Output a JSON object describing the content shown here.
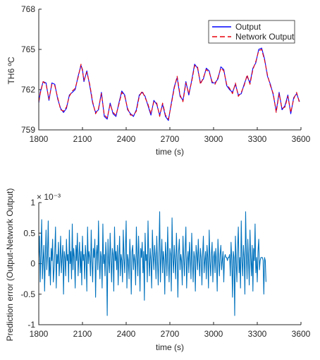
{
  "chart_data": [
    {
      "type": "line",
      "xlabel": "time (s)",
      "ylabel": "TH6 ºC",
      "xlim": [
        1800,
        3600
      ],
      "ylim": [
        759,
        768
      ],
      "xticks": [
        1800,
        2100,
        2400,
        2700,
        3000,
        3300,
        3600
      ],
      "yticks": [
        759,
        762,
        765,
        768
      ],
      "grid": false,
      "legend_location": "top-right",
      "x": [
        1800,
        1810,
        1830,
        1850,
        1870,
        1890,
        1910,
        1930,
        1950,
        1970,
        1990,
        2010,
        2030,
        2050,
        2070,
        2090,
        2100,
        2110,
        2130,
        2150,
        2170,
        2190,
        2210,
        2230,
        2250,
        2270,
        2290,
        2310,
        2330,
        2350,
        2370,
        2390,
        2410,
        2430,
        2450,
        2470,
        2490,
        2510,
        2530,
        2550,
        2570,
        2590,
        2610,
        2630,
        2650,
        2670,
        2690,
        2710,
        2730,
        2750,
        2770,
        2790,
        2810,
        2830,
        2850,
        2870,
        2890,
        2910,
        2930,
        2950,
        2970,
        2990,
        3010,
        3030,
        3050,
        3070,
        3090,
        3110,
        3130,
        3150,
        3170,
        3190,
        3210,
        3230,
        3250,
        3270,
        3290,
        3310,
        3330,
        3350,
        3370,
        3390,
        3410,
        3430,
        3450,
        3470,
        3490,
        3510,
        3530,
        3550,
        3570,
        3590
      ],
      "series": [
        {
          "name": "Output",
          "color": "#0000ff",
          "dash": "solid",
          "values": [
            761.0,
            761.8,
            762.6,
            762.5,
            761.2,
            762.5,
            762.4,
            761.3,
            760.6,
            760.3,
            760.6,
            761.6,
            761.8,
            762.0,
            763.0,
            763.8,
            763.5,
            762.6,
            763.4,
            762.3,
            761.0,
            760.3,
            760.5,
            761.8,
            760.0,
            759.8,
            761.0,
            760.2,
            760.0,
            761.0,
            761.9,
            761.6,
            760.5,
            760.2,
            760.0,
            760.5,
            761.6,
            761.8,
            761.5,
            760.8,
            760.1,
            761.2,
            760.9,
            760.1,
            760.9,
            760.0,
            759.7,
            761.0,
            762.2,
            762.9,
            761.5,
            761.2,
            762.6,
            761.6,
            762.7,
            763.9,
            763.6,
            762.5,
            762.8,
            763.6,
            763.4,
            762.5,
            762.5,
            762.8,
            763.7,
            763.5,
            762.3,
            762.0,
            761.8,
            762.4,
            761.6,
            761.7,
            762.4,
            763.0,
            762.5,
            763.6,
            764.0,
            765.0,
            765.1,
            764.3,
            763.0,
            762.4,
            761.6,
            760.4,
            761.8,
            760.5,
            760.8,
            761.6,
            760.2,
            761.4,
            761.7,
            761.1
          ]
        },
        {
          "name": "Network Output",
          "color": "#e8000b",
          "dash": "dashed",
          "values": [
            761.1,
            761.7,
            762.6,
            762.4,
            761.3,
            762.4,
            762.3,
            761.4,
            760.5,
            760.4,
            760.7,
            761.5,
            761.9,
            762.1,
            762.9,
            763.9,
            763.4,
            762.7,
            763.3,
            762.4,
            761.1,
            760.2,
            760.6,
            761.7,
            760.1,
            759.9,
            760.9,
            760.3,
            760.1,
            760.9,
            761.8,
            761.5,
            760.6,
            760.1,
            760.1,
            760.4,
            761.5,
            761.9,
            761.4,
            760.9,
            760.2,
            761.1,
            761.0,
            760.0,
            761.0,
            760.1,
            759.8,
            760.9,
            762.1,
            763.0,
            761.6,
            761.1,
            762.5,
            761.7,
            762.6,
            763.8,
            763.7,
            762.4,
            762.9,
            763.5,
            763.3,
            762.6,
            762.4,
            762.9,
            763.6,
            763.4,
            762.4,
            762.1,
            761.7,
            762.5,
            761.5,
            761.8,
            762.3,
            763.1,
            762.4,
            763.5,
            764.1,
            764.9,
            765.0,
            764.2,
            763.1,
            762.3,
            761.7,
            760.3,
            761.7,
            760.6,
            760.7,
            761.5,
            760.3,
            761.3,
            761.8,
            761.0
          ]
        }
      ]
    },
    {
      "type": "line",
      "xlabel": "time (s)",
      "ylabel": "Prediction error (Output-Network Output)",
      "y_exponent_label": "× 10⁻³",
      "xlim": [
        1800,
        3600
      ],
      "ylim": [
        -1,
        1
      ],
      "xticks": [
        1800,
        2100,
        2400,
        2700,
        3000,
        3300,
        3600
      ],
      "yticks": [
        -1,
        -0.5,
        0,
        0.5,
        1
      ],
      "grid": false,
      "series": [
        {
          "color": "#0072bd",
          "dash": "solid",
          "x_start": 1800,
          "x_step": 5,
          "values": [
            0.1,
            0.45,
            -0.3,
            0.2,
            0.72,
            -0.25,
            0.05,
            0.3,
            -0.45,
            0.1,
            0.55,
            -0.1,
            0.15,
            0.7,
            -0.2,
            0.1,
            -0.35,
            0.25,
            0.05,
            0.4,
            -0.3,
            -0.1,
            0.2,
            0.6,
            -0.4,
            0.15,
            0.0,
            0.35,
            -0.2,
            0.05,
            0.45,
            -0.15,
            0.1,
            0.3,
            -0.5,
            0.2,
            0.1,
            -0.2,
            0.4,
            0.05,
            0.15,
            -0.3,
            0.55,
            0.0,
            0.2,
            -0.25,
            0.65,
            -0.1,
            0.25,
            0.1,
            -0.4,
            0.3,
            0.05,
            0.5,
            -0.2,
            0.1,
            0.35,
            -0.15,
            0.2,
            -0.35,
            0.45,
            0.05,
            0.15,
            -0.25,
            0.3,
            0.1,
            -0.45,
            0.6,
            0.0,
            0.2,
            0.1,
            -0.2,
            0.55,
            0.05,
            -0.3,
            0.25,
            0.1,
            0.4,
            -0.55,
            0.15,
            0.3,
            -0.1,
            0.7,
            0.05,
            -0.25,
            0.2,
            0.1,
            -0.4,
            0.65,
            0.0,
            0.15,
            -0.2,
            0.35,
            0.1,
            -0.85,
            0.4,
            0.05,
            -0.15,
            0.5,
            0.1,
            -0.3,
            0.25,
            0.15,
            -0.45,
            0.6,
            0.05,
            0.2,
            -0.1,
            0.3,
            -0.35,
            0.1,
            0.45,
            -0.2,
            0.15,
            0.05,
            -0.3,
            0.55,
            0.1,
            -0.15,
            0.25,
            0.7,
            -0.4,
            0.15,
            0.05,
            -0.25,
            0.4,
            0.1,
            -0.5,
            0.2,
            0.3,
            -0.1,
            0.15,
            0.05,
            -0.35,
            0.6,
            0.1,
            -0.2,
            0.45,
            0.05,
            -0.45,
            0.25,
            0.1,
            0.35,
            -0.15,
            0.2,
            -0.6,
            0.5,
            0.05,
            0.15,
            -0.3,
            0.7,
            0.1,
            -0.2,
            0.25,
            0.05,
            -0.4,
            0.55,
            0.15,
            -0.1,
            0.3,
            0.1,
            -0.25,
            0.45,
            0.05,
            -0.35,
            0.2,
            0.85,
            -0.3,
            0.1,
            0.4,
            -0.15,
            0.2,
            0.05,
            -0.5,
            0.35,
            0.1,
            -0.2,
            0.6,
            0.05,
            -0.3,
            0.25,
            0.15,
            -0.45,
            0.75,
            0.1,
            -0.15,
            0.3,
            0.05,
            -0.25,
            0.5,
            0.1,
            -0.55,
            0.2,
            0.4,
            -0.1,
            0.15,
            0.05,
            -0.35,
            0.45,
            0.1,
            -0.2,
            0.25,
            0.6,
            -0.4,
            0.05,
            0.2,
            -0.15,
            0.35,
            0.1,
            -0.25,
            0.5,
            0.05,
            -0.3,
            0.2,
            0.1,
            -0.45,
            0.3,
            0.15,
            -0.1,
            0.4,
            0.05,
            -0.2,
            0.25,
            0.1,
            -0.35,
            0.15,
            0.45,
            -0.15,
            0.05,
            0.2,
            -0.25,
            0.3,
            0.1,
            -0.4,
            0.55,
            0.05,
            -0.2,
            0.15,
            0.35,
            -0.3,
            0.1,
            0.2,
            -0.15,
            0.25,
            0.05,
            -0.45,
            0.4,
            0.1,
            -0.2,
            0.15,
            0.3,
            -0.1,
            0.05,
            0.2,
            -0.3,
            0.1,
            0.15,
            0.1,
            0.1,
            0.05,
            0.1,
            0.1,
            0.15,
            -0.2,
            0.35,
            0.05,
            -0.55,
            0.2,
            0.1,
            -0.85,
            0.45,
            0.05,
            -0.3,
            0.25,
            0.6,
            -0.15,
            0.1,
            -0.4,
            0.7,
            0.05,
            -0.2,
            0.3,
            0.1,
            -0.5,
            0.85,
            0.15,
            -0.25,
            0.4,
            0.05,
            -0.35,
            0.55,
            0.1,
            -0.2,
            0.3,
            -0.45,
            0.25,
            0.05,
            0.65,
            -0.15,
            0.1,
            -0.3,
            0.2,
            0.4,
            -0.1,
            0.05,
            0.1,
            0.1,
            0.1,
            0.05,
            -0.5,
            0.1,
            0.05,
            -0.3
          ]
        }
      ]
    }
  ]
}
